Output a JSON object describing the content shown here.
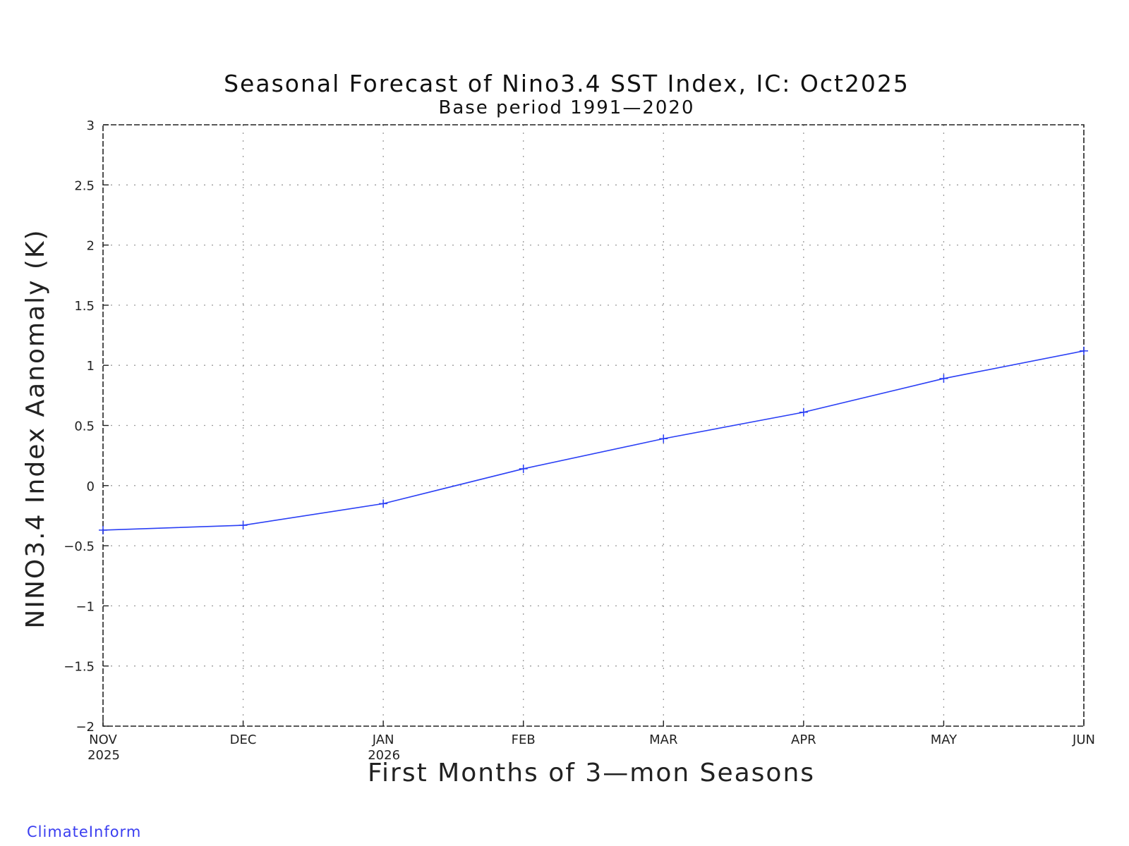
{
  "credit": "ClimateInform",
  "colors": {
    "series": "#2a3ff5",
    "frame": "#222222",
    "grid": "#9a9a9a"
  },
  "chart_data": {
    "type": "line",
    "title": "Seasonal Forecast of Nino3.4 SST Index, IC: Oct2025",
    "subtitle": "Base period 1991—2020",
    "xlabel": "First Months of 3—mon Seasons",
    "ylabel": "NINO3.4 Index Aanomaly (K)",
    "categories": [
      "NOV",
      "DEC",
      "JAN",
      "FEB",
      "MAR",
      "APR",
      "MAY",
      "JUN"
    ],
    "category_years": [
      "2025",
      "",
      "2026",
      "",
      "",
      "",
      "",
      ""
    ],
    "values": [
      -0.37,
      -0.33,
      -0.15,
      0.14,
      0.39,
      0.61,
      0.89,
      1.12
    ],
    "ylim": [
      -2,
      3
    ],
    "yticks": [
      3,
      2.5,
      2,
      1.5,
      1,
      0.5,
      0,
      -0.5,
      -1,
      -1.5,
      -2
    ],
    "ytick_labels": [
      "3",
      "2.5",
      "2",
      "1.5",
      "1",
      "0.5",
      "0",
      "−0.5",
      "−1",
      "−1.5",
      "−2"
    ],
    "grid": true,
    "marker": "plus"
  }
}
